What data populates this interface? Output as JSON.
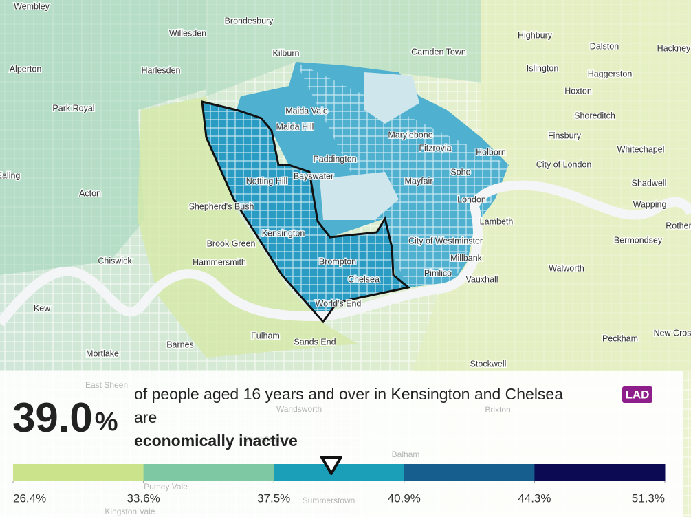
{
  "places": [
    "Wembley",
    "Brondesbury",
    "Willesden",
    "Kilburn",
    "Camden Town",
    "Highbury",
    "Dalston",
    "Hackney",
    "Alperton",
    "Harlesden",
    "Islington",
    "Haggerston",
    "Hoxton",
    "Park Royal",
    "Maida Vale",
    "Shoreditch",
    "Maida Hill",
    "Marylebone",
    "Finsbury",
    "Fitzrovia",
    "Holborn",
    "Whitechapel",
    "Paddington",
    "City of London",
    "Ealing",
    "Bayswater",
    "Soho",
    "Notting Hill",
    "Mayfair",
    "Shadwell",
    "Acton",
    "London",
    "Shepherd's Bush",
    "Wapping",
    "Lambeth",
    "Rother",
    "Kensington",
    "Brook Green",
    "City of Westminster",
    "Bermondsey",
    "Chiswick",
    "Hammersmith",
    "Brompton",
    "Millbank",
    "Walworth",
    "Pimlico",
    "Vauxhall",
    "Chelsea",
    "World's End",
    "Kew",
    "Fulham",
    "Sands End",
    "Peckham",
    "New Cros",
    "Barnes",
    "Mortlake",
    "Stockwell"
  ],
  "faded_places": [
    "East Sheen",
    "Wandsworth",
    "Brixton",
    "Southfields",
    "Balham",
    "Putney Vale",
    "Summerstown",
    "Kingston Vale"
  ],
  "panel": {
    "headline": {
      "value": 39,
      "label": "39.0"
    },
    "unit": "%",
    "sentence": "of people aged 16 years and over in Kensington and Chelsea",
    "badge": "LAD",
    "verb": "are",
    "measure": "economically inactive"
  },
  "legend": {
    "breaks": [
      {
        "value": 26.4,
        "label": "26.4%"
      },
      {
        "value": 33.6,
        "label": "33.6%"
      },
      {
        "value": 37.5,
        "label": "37.5%"
      },
      {
        "value": 40.9,
        "label": "40.9%"
      },
      {
        "value": 44.3,
        "label": "44.3%"
      },
      {
        "value": 51.3,
        "label": "51.3%"
      }
    ],
    "colors": [
      "#cbe48c",
      "#7ec9a3",
      "#1b9fb8",
      "#155e8e",
      "#0b0a52"
    ]
  }
}
